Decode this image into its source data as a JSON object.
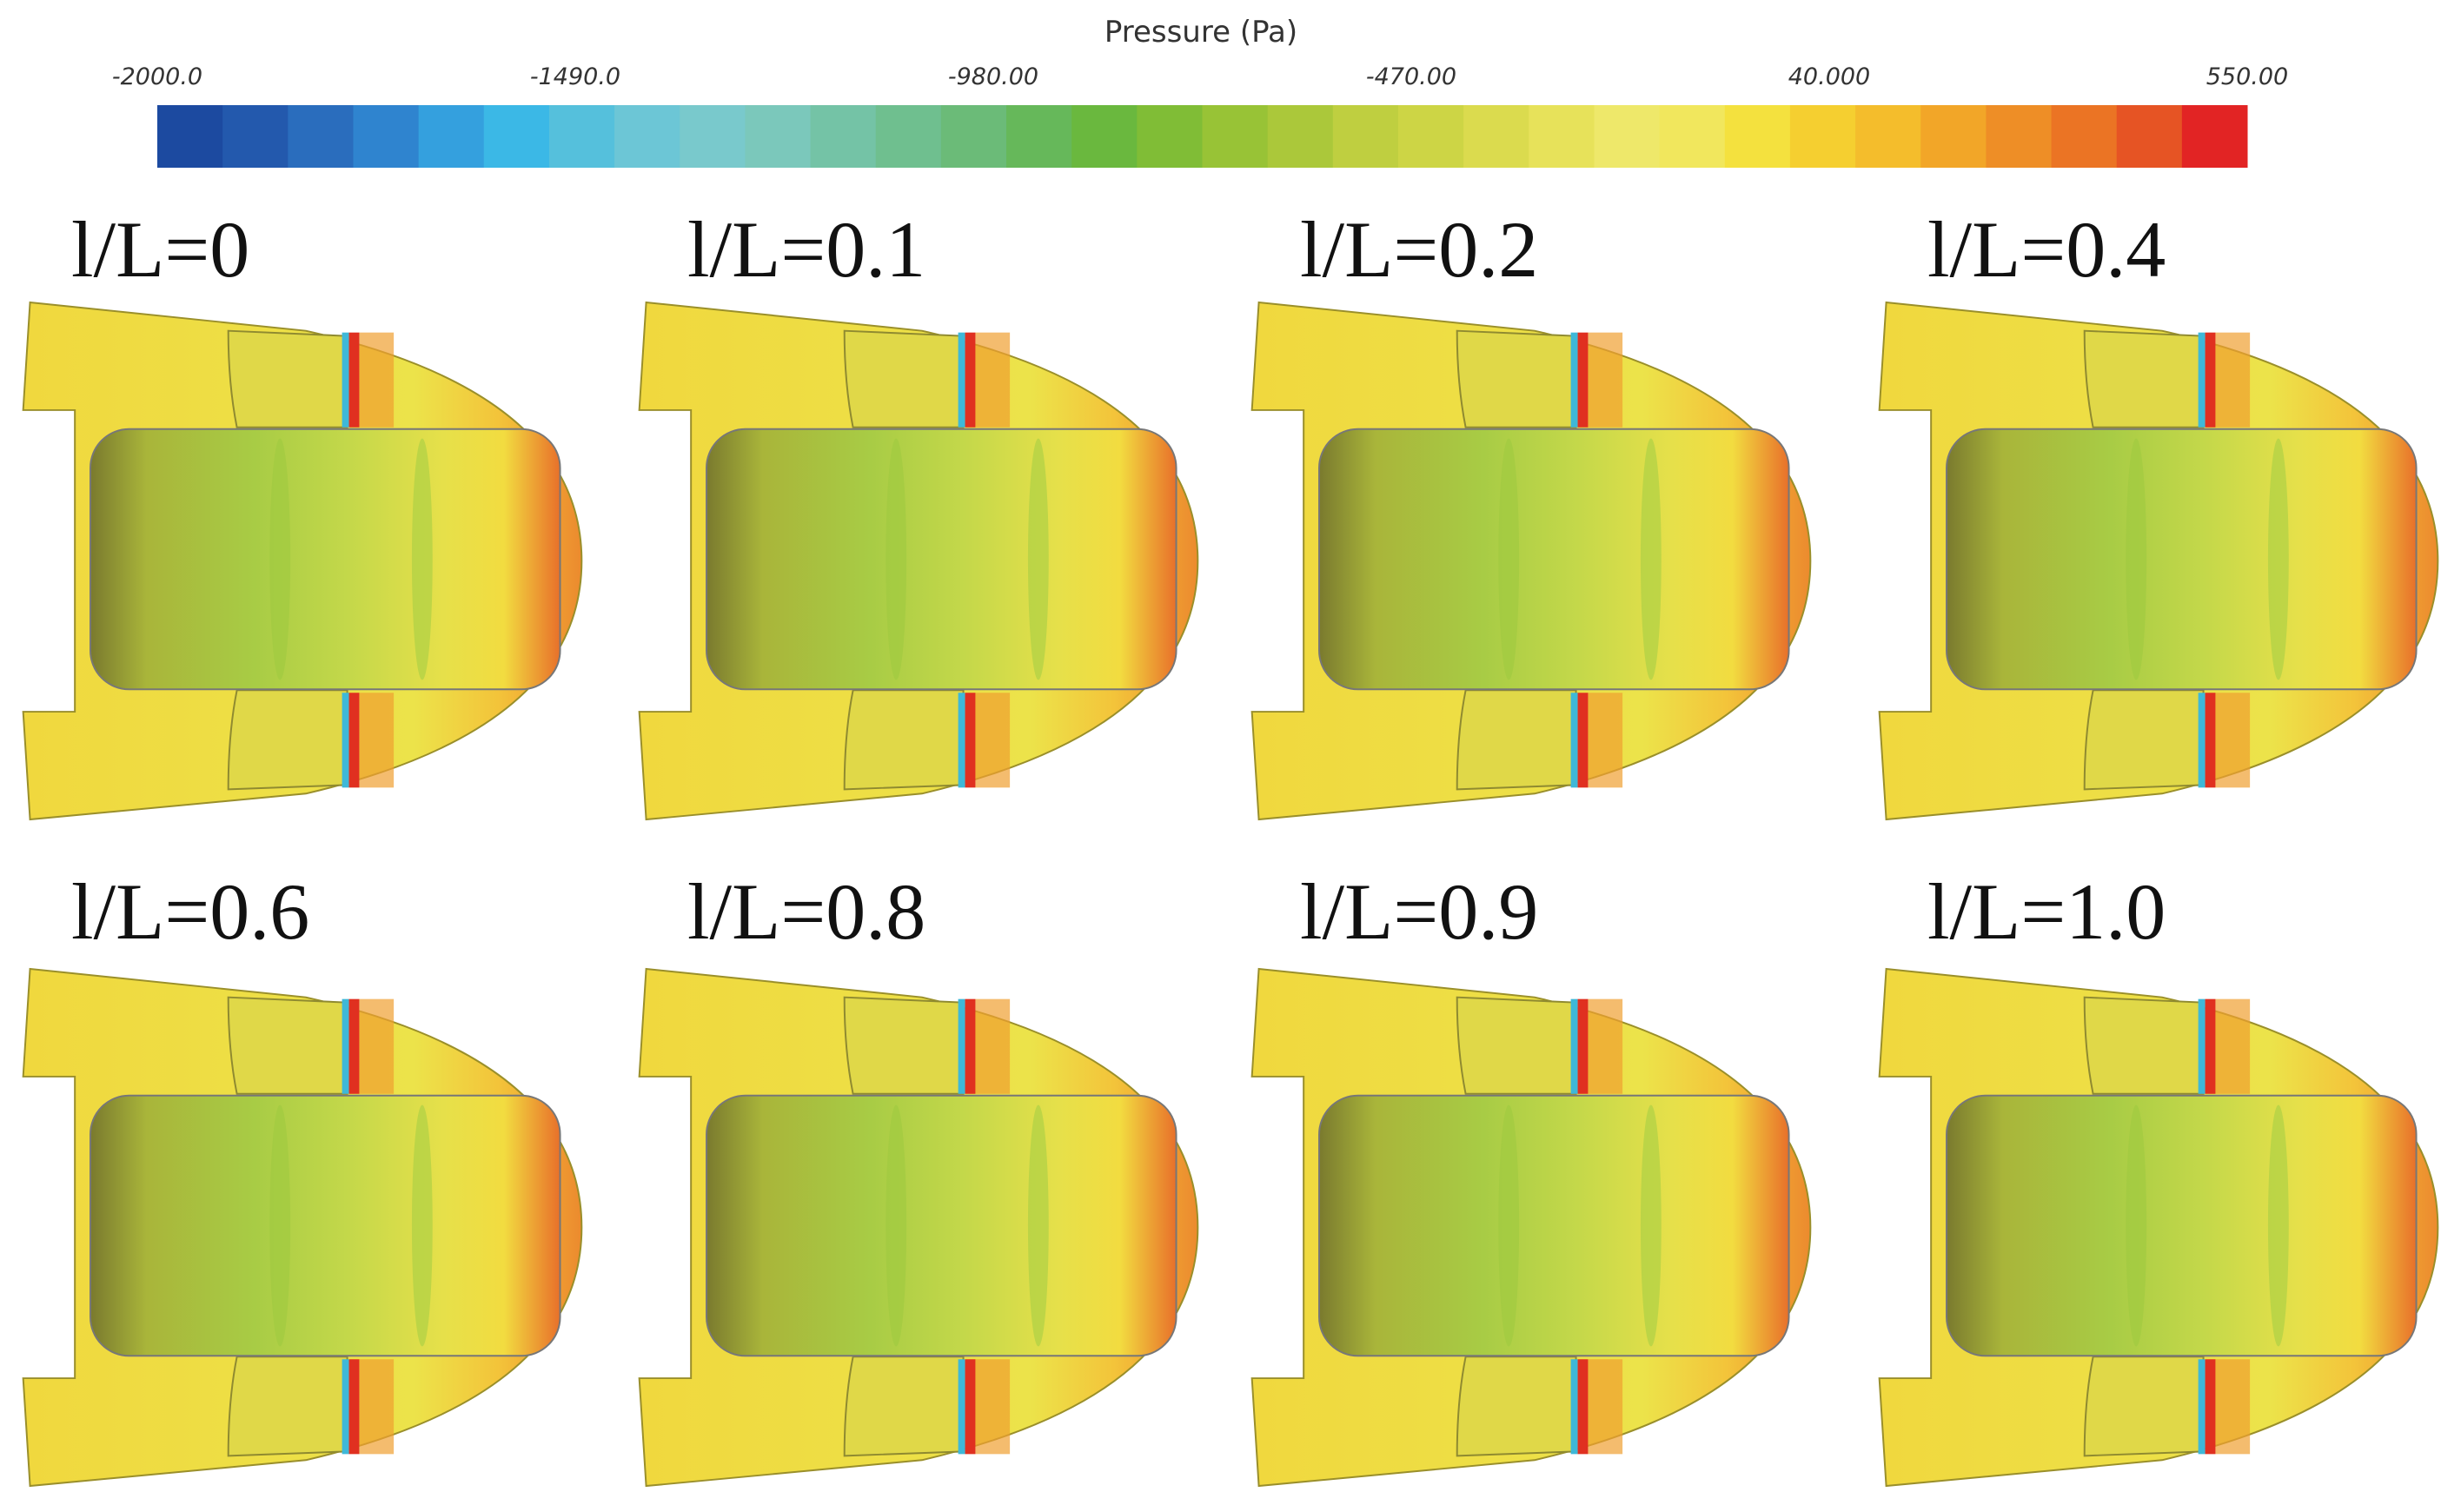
{
  "colorbar": {
    "title": "Pressure (Pa)",
    "tick_labels": [
      "-2000.0",
      "-1490.0",
      "-980.00",
      "-470.00",
      "40.000",
      "550.00"
    ]
  },
  "panels": [
    {
      "label": "l/L=0"
    },
    {
      "label": "l/L=0.1"
    },
    {
      "label": "l/L=0.2"
    },
    {
      "label": "l/L=0.4"
    },
    {
      "label": "l/L=0.6"
    },
    {
      "label": "l/L=0.8"
    },
    {
      "label": "l/L=0.9"
    },
    {
      "label": "l/L=1.0"
    }
  ]
}
